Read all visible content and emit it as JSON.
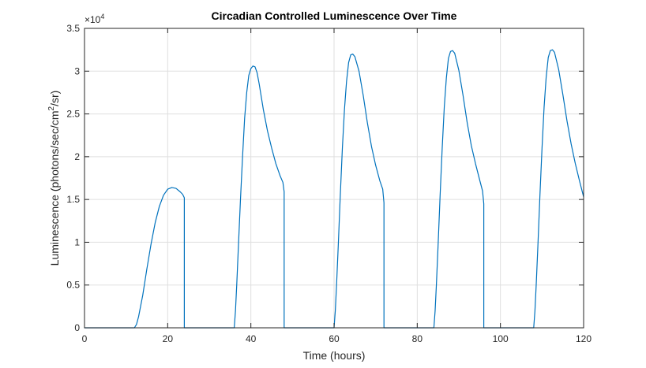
{
  "chart_data": {
    "type": "line",
    "title": "Circadian Controlled Luminescence Over Time",
    "xlabel": "Time (hours)",
    "ylabel_main": "Luminescence (photons/sec/cm",
    "ylabel_sup": "2",
    "ylabel_tail": "/sr)",
    "exponent_base": "×10",
    "exponent_power": "4",
    "xlim": [
      0,
      120
    ],
    "ylim": [
      0,
      35000
    ],
    "xticks": [
      0,
      20,
      40,
      60,
      80,
      100,
      120
    ],
    "xtick_labels": [
      "0",
      "20",
      "40",
      "60",
      "80",
      "100",
      "120"
    ],
    "yticks": [
      0,
      5000,
      10000,
      15000,
      20000,
      25000,
      30000,
      35000
    ],
    "ytick_labels": [
      "0",
      "0.5",
      "1",
      "1.5",
      "2",
      "2.5",
      "3",
      "3.5"
    ],
    "grid": true,
    "line_color": "#0072BD",
    "series": [
      {
        "x": [
          0,
          12,
          12.5,
          13,
          14,
          15,
          16,
          17,
          18,
          19,
          20,
          21,
          22,
          23,
          23.6,
          24,
          24,
          36,
          36.3,
          36.6,
          37,
          37.5,
          38,
          38.5,
          39,
          39.5,
          40,
          40.5,
          41,
          41.5,
          42,
          43,
          44,
          45,
          46,
          47,
          47.7,
          48,
          48,
          60,
          60.3,
          60.6,
          61,
          61.5,
          62,
          62.5,
          63,
          63.5,
          64,
          64.5,
          65,
          66,
          67,
          68,
          69,
          70,
          71,
          71.7,
          72,
          72,
          84,
          84.3,
          84.6,
          85,
          85.5,
          86,
          86.5,
          87,
          87.5,
          88,
          88.5,
          89,
          90,
          91,
          92,
          93,
          94,
          95,
          95.7,
          96,
          96,
          108,
          108.3,
          108.6,
          109,
          109.5,
          110,
          110.5,
          111,
          111.5,
          112,
          112.5,
          113,
          114,
          115,
          116,
          117,
          118,
          119,
          120
        ],
        "y": [
          0,
          0,
          400,
          1300,
          3800,
          6900,
          9800,
          12300,
          14200,
          15500,
          16200,
          16400,
          16300,
          15900,
          15600,
          15200,
          0,
          0,
          2000,
          5000,
          9500,
          15000,
          20000,
          24500,
          27500,
          29500,
          30300,
          30600,
          30500,
          29800,
          28500,
          25500,
          23000,
          21000,
          19200,
          17800,
          17000,
          15900,
          0,
          0,
          2000,
          5000,
          9500,
          15500,
          21000,
          25500,
          28800,
          31000,
          31900,
          32000,
          31700,
          30000,
          27200,
          24000,
          21200,
          19000,
          17200,
          16200,
          14600,
          0,
          0,
          2000,
          5000,
          9500,
          15500,
          21000,
          25800,
          29200,
          31500,
          32300,
          32400,
          32100,
          30100,
          27200,
          24000,
          21300,
          19200,
          17300,
          16000,
          14500,
          0,
          0,
          2000,
          5000,
          9500,
          15500,
          21000,
          25800,
          29300,
          31600,
          32400,
          32500,
          32200,
          30200,
          27300,
          24200,
          21500,
          19200,
          17200,
          15300
        ]
      }
    ]
  }
}
